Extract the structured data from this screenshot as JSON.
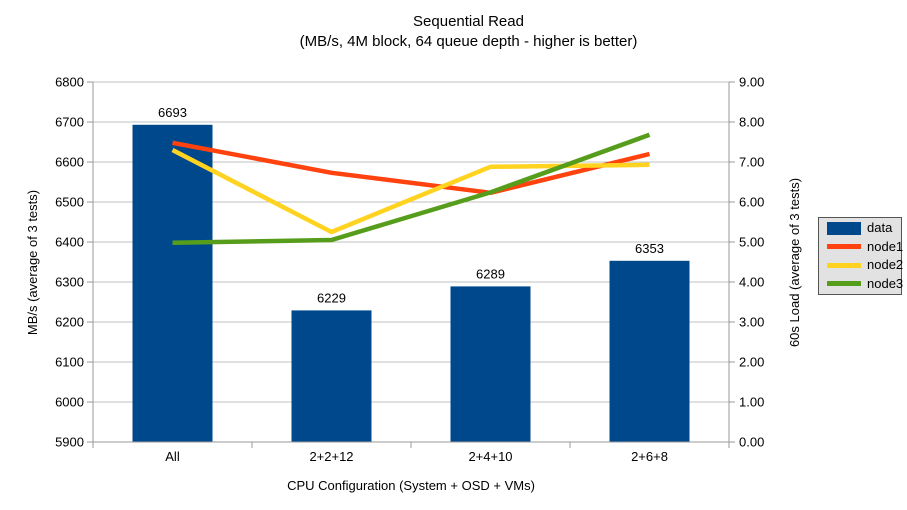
{
  "title": "Sequential Read",
  "subtitle": "(MB/s, 4M block, 64 queue depth - higher is better)",
  "colors": {
    "data": "#00488c",
    "node1": "#ff420e",
    "node2": "#ffd320",
    "node3": "#579d1c",
    "grid": "#c0c0c0",
    "axis": "#999999",
    "text": "#000000",
    "legend_bg": "#e2e2e2",
    "legend_border": "#555555",
    "background": "#ffffff"
  },
  "chart_data": {
    "type": "bar+line",
    "title": "Sequential Read",
    "subtitle": "(MB/s, 4M block, 64 queue depth - higher is better)",
    "categories": [
      "All",
      "2+2+12",
      "2+4+10",
      "2+6+8"
    ],
    "bar_series": {
      "name": "data",
      "axis": "left",
      "values": [
        6693,
        6229,
        6289,
        6353
      ],
      "value_labels": [
        "6693",
        "6229",
        "6289",
        "6353"
      ]
    },
    "line_series": [
      {
        "name": "node1",
        "axis": "right",
        "values": [
          7.48,
          6.73,
          6.23,
          7.2
        ]
      },
      {
        "name": "node2",
        "axis": "right",
        "values": [
          7.3,
          5.25,
          6.88,
          6.93
        ]
      },
      {
        "name": "node3",
        "axis": "right",
        "values": [
          4.98,
          5.05,
          6.24,
          7.68
        ]
      }
    ],
    "left_axis": {
      "label": "MB/s (average of 3 tests)",
      "min": 5900,
      "max": 6800,
      "step": 100,
      "tick_labels": [
        "5900",
        "6000",
        "6100",
        "6200",
        "6300",
        "6400",
        "6500",
        "6600",
        "6700",
        "6800"
      ]
    },
    "right_axis": {
      "label": "60s Load (average of 3 tests)",
      "min": 0,
      "max": 9,
      "step": 1,
      "tick_labels": [
        "0.00",
        "1.00",
        "2.00",
        "3.00",
        "4.00",
        "5.00",
        "6.00",
        "7.00",
        "8.00",
        "9.00"
      ]
    },
    "x_axis": {
      "label": "CPU Configuration (System + OSD + VMs)"
    },
    "legend": {
      "position": "right",
      "entries": [
        "data",
        "node1",
        "node2",
        "node3"
      ]
    },
    "grid": true
  }
}
